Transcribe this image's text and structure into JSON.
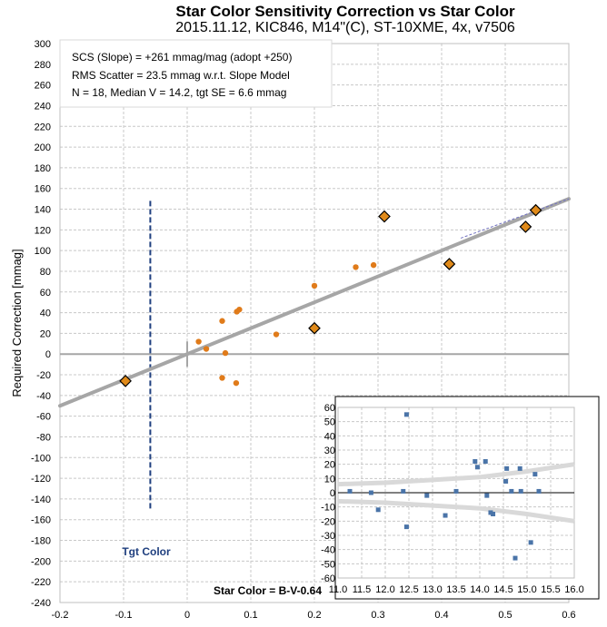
{
  "chart_data": [
    {
      "type": "scatter",
      "title": "Star Color Sensitivity Correction vs Star Color",
      "subtitle": "2015.11.12, KIC846, M14\"(C), ST-10XME, 4x, v7506",
      "ylabel": "Required Correction [mmag]",
      "xlabel": "Star Color = B-V-0.64",
      "xlim": [
        -0.2,
        0.6
      ],
      "ylim": [
        -240,
        300
      ],
      "x_ticks": [
        "-0.2",
        "-0.1",
        "0",
        "0.1",
        "0.2",
        "0.3",
        "0.4",
        "0.5",
        "0.6"
      ],
      "y_ticks": [
        "300",
        "280",
        "260",
        "240",
        "220",
        "200",
        "180",
        "160",
        "140",
        "120",
        "100",
        "80",
        "60",
        "40",
        "20",
        "0",
        "-20",
        "-40",
        "-60",
        "-80",
        "-100",
        "-120",
        "-140",
        "-160",
        "-180",
        "-200",
        "-220",
        "-240"
      ],
      "grid": true,
      "annotations": [
        "SCS (Slope)  =  +261 mmag/mag (adopt +250)",
        "RMS Scatter = 23.5 mmag w.r.t. Slope Model",
        "N = 18,  Median V = 14.2, tgt SE = 6.6 mmag"
      ],
      "target_label": "Tgt Color",
      "target_color_x": -0.058,
      "fit_line": {
        "slope": 250,
        "intercept": 0
      },
      "series": [
        {
          "marker": "dot",
          "color": "#e07b1a",
          "x": [
            0.018,
            0.03,
            0.055,
            0.055,
            0.06,
            0.077,
            0.078,
            0.082,
            0.14,
            0.2,
            0.265,
            0.293
          ],
          "y": [
            12,
            5,
            -23,
            32,
            1,
            -28,
            41,
            43,
            19,
            66,
            84,
            86
          ]
        },
        {
          "marker": "diamond",
          "color": "#e08a1a",
          "x": [
            -0.097,
            0.2,
            0.31,
            0.412,
            0.532,
            0.548
          ],
          "y": [
            -26,
            25,
            133,
            87,
            123,
            139
          ]
        }
      ]
    },
    {
      "type": "scatter",
      "xlim": [
        11.0,
        16.0
      ],
      "ylim": [
        -60,
        60
      ],
      "x_ticks": [
        "11.0",
        "11.5",
        "12.0",
        "12.5",
        "13.0",
        "13.5",
        "14.0",
        "14.5",
        "15.0",
        "15.5",
        "16.0"
      ],
      "y_ticks": [
        "60",
        "50",
        "40",
        "30",
        "20",
        "10",
        "0",
        "-10",
        "-20",
        "-30",
        "-40",
        "-50",
        "-60"
      ],
      "grid": true,
      "series": [
        {
          "marker": "square",
          "color": "#4a74a8",
          "x": [
            11.25,
            11.7,
            11.85,
            12.38,
            12.45,
            12.45,
            12.88,
            13.27,
            13.5,
            13.9,
            13.95,
            14.12,
            14.15,
            14.23,
            14.28,
            14.55,
            14.57,
            14.67,
            14.75,
            14.85,
            14.87,
            15.08,
            15.17,
            15.25
          ],
          "y": [
            1,
            0,
            -12,
            1,
            55,
            -24,
            -2,
            -16,
            1,
            22,
            18,
            22,
            -2,
            -14,
            -15,
            8,
            17,
            1,
            -46,
            17,
            1,
            -35,
            13,
            1
          ]
        }
      ]
    }
  ]
}
